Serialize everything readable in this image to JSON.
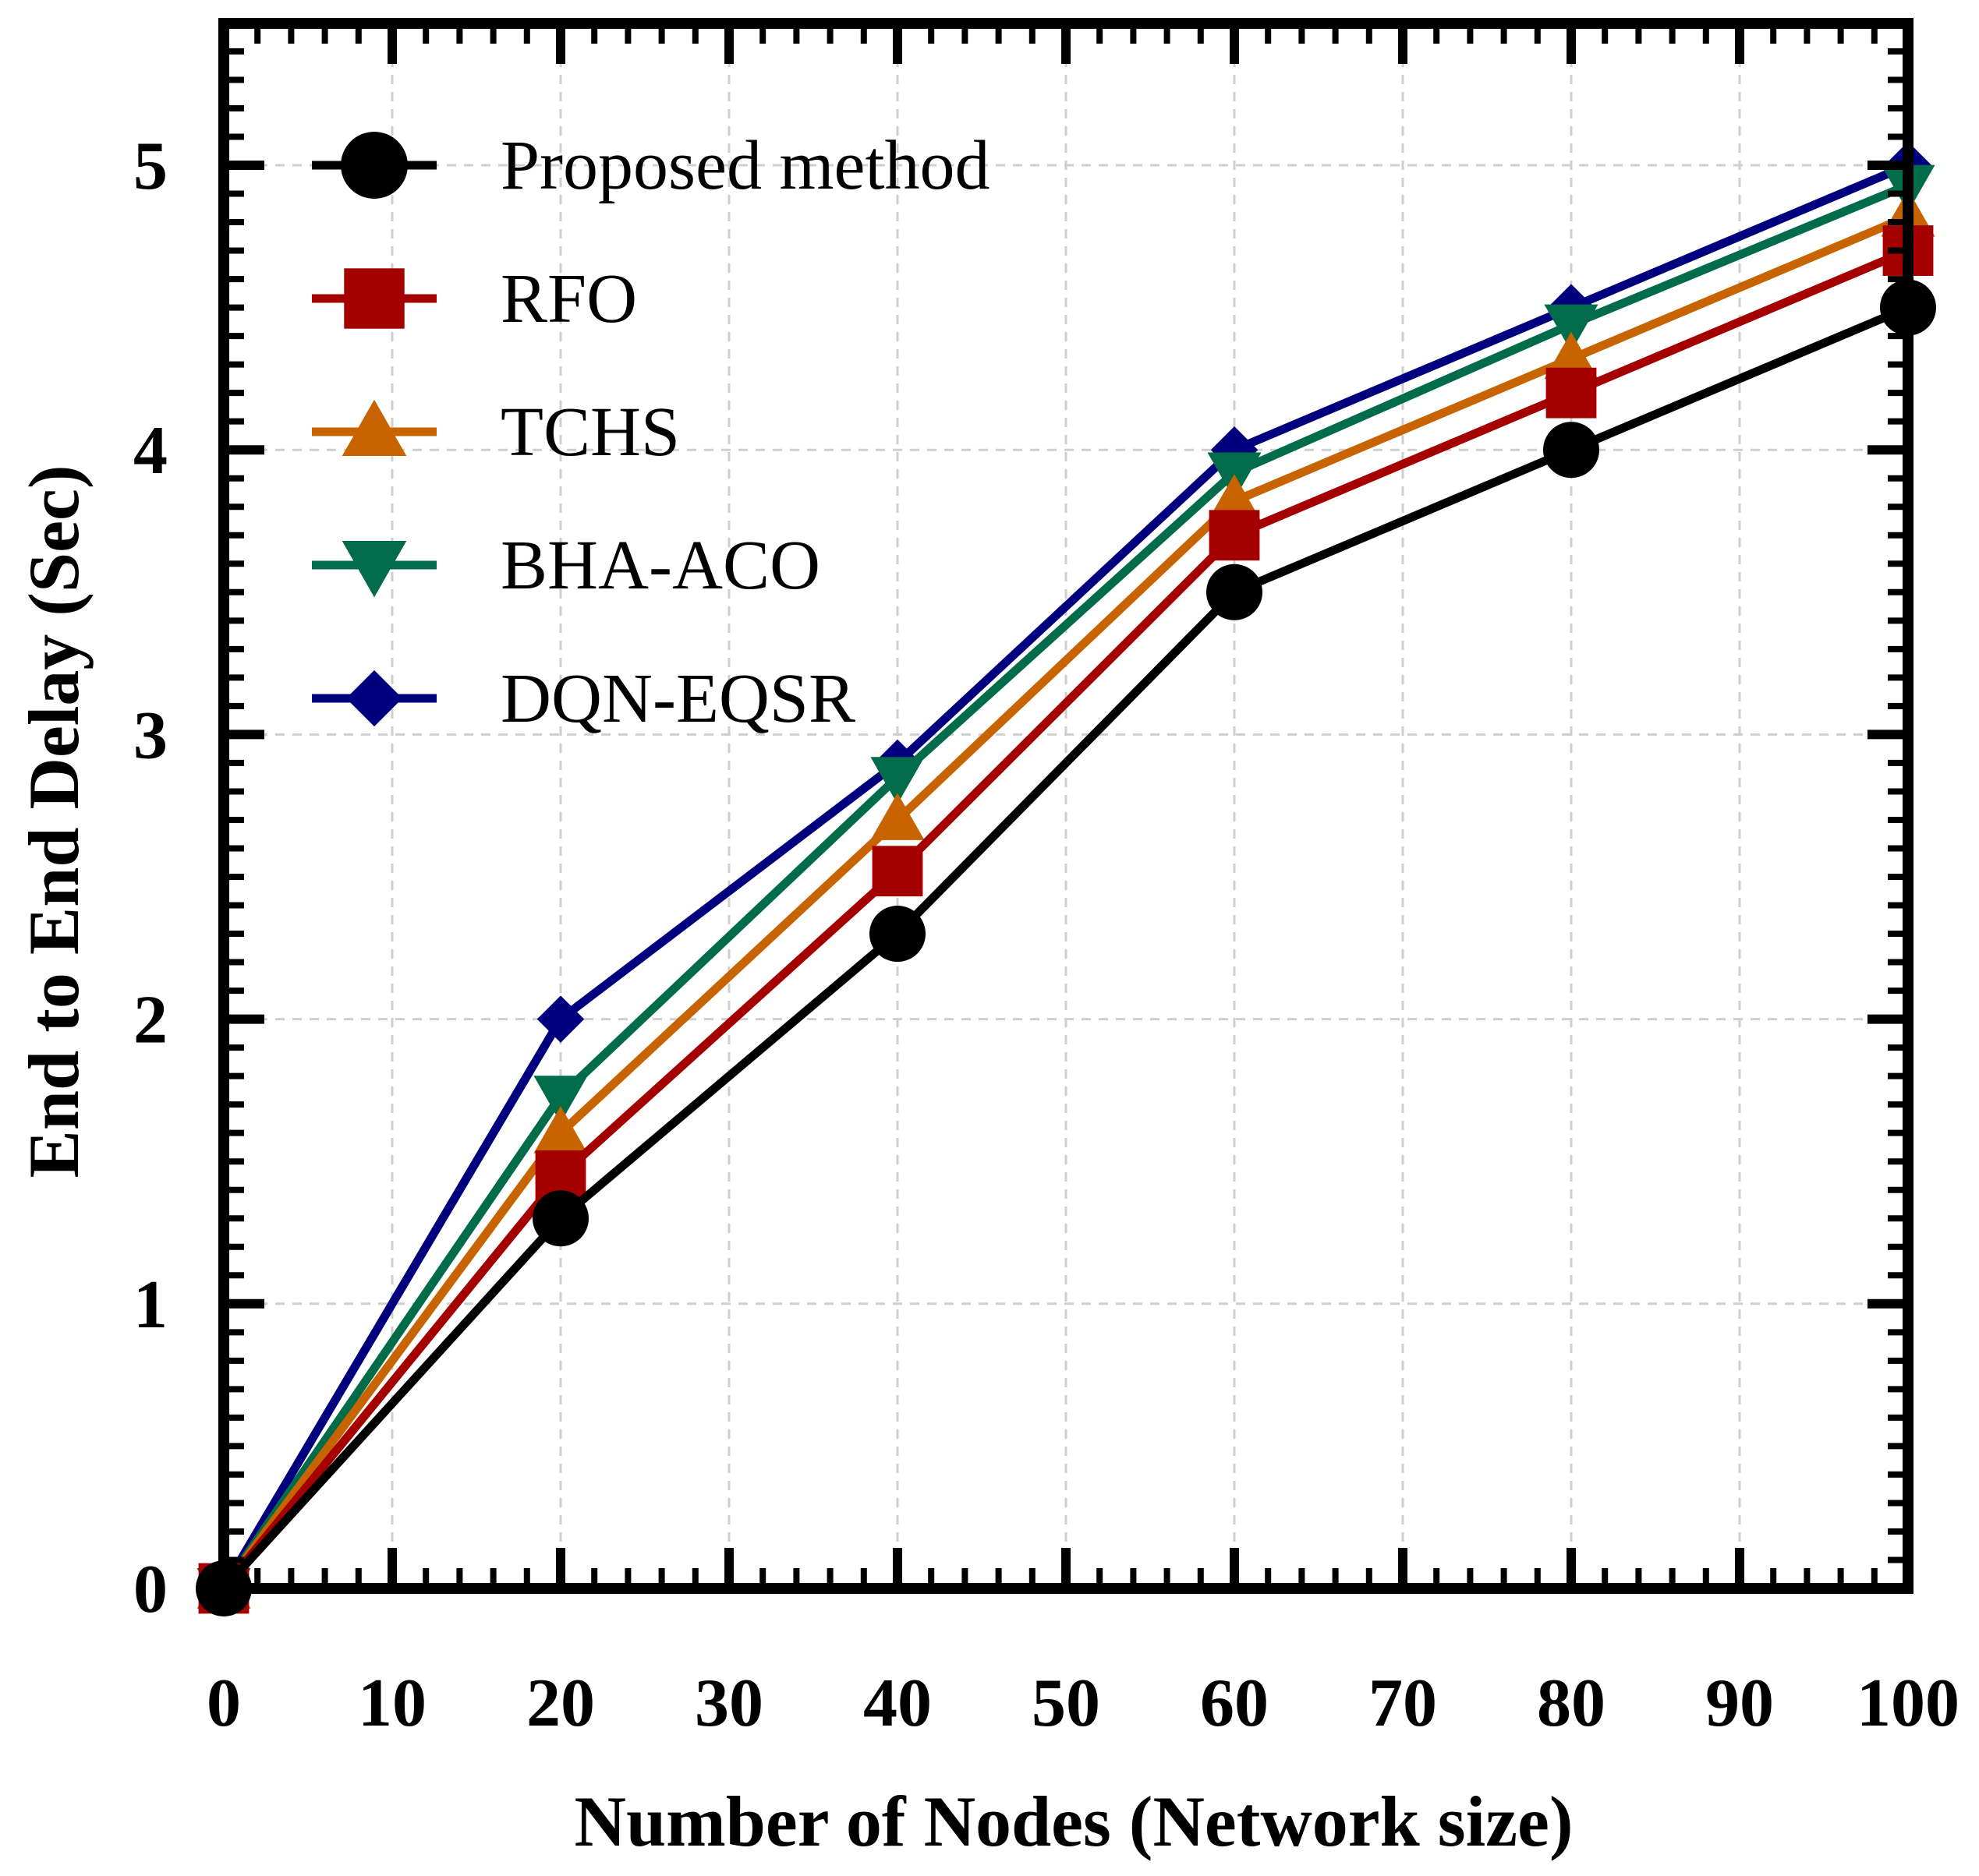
{
  "chart_data": {
    "type": "line",
    "title": "",
    "xlabel": "Number of Nodes (Network size)",
    "ylabel": "End to End Delay (Sec)",
    "xlim": [
      0,
      100
    ],
    "ylim": [
      0,
      5.5
    ],
    "xticks": [
      0,
      10,
      20,
      30,
      40,
      50,
      60,
      70,
      80,
      90,
      100
    ],
    "yticks": [
      0,
      1,
      2,
      3,
      4,
      5
    ],
    "x": [
      0,
      20,
      40,
      60,
      80,
      100
    ],
    "grid": true,
    "legend_position": "top-left",
    "series": [
      {
        "name": "Proposed method",
        "color": "#000000",
        "marker": "circle",
        "values": [
          0,
          1.3,
          2.3,
          3.5,
          4.0,
          4.5
        ]
      },
      {
        "name": "RFO",
        "color": "#a50000",
        "marker": "square",
        "values": [
          0,
          1.45,
          2.52,
          3.7,
          4.2,
          4.7
        ]
      },
      {
        "name": "TCHS",
        "color": "#c86400",
        "marker": "triangle-up",
        "values": [
          0,
          1.6,
          2.7,
          3.82,
          4.32,
          4.82
        ]
      },
      {
        "name": "BHA-ACO",
        "color": "#006c4a",
        "marker": "triangle-down",
        "values": [
          0,
          1.73,
          2.85,
          3.92,
          4.44,
          4.93
        ]
      },
      {
        "name": "DQN-EQSR",
        "color": "#00007f",
        "marker": "diamond",
        "values": [
          0,
          2.0,
          2.9,
          4.0,
          4.5,
          5.0
        ]
      }
    ]
  }
}
